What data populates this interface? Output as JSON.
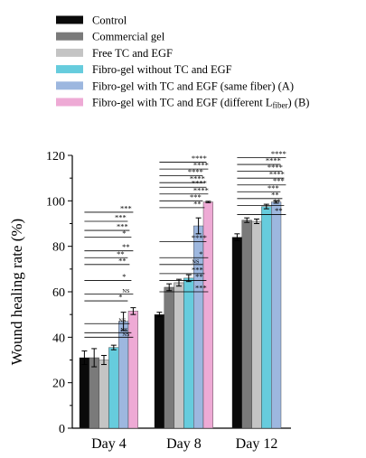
{
  "chart_data": {
    "type": "bar",
    "ylabel": "Wound healing rate (%)",
    "xlabel": "",
    "ylim": [
      0,
      120
    ],
    "yticks": [
      0,
      20,
      40,
      60,
      80,
      100,
      120
    ],
    "grid": false,
    "legend_position": "top",
    "categories": [
      "Day 4",
      "Day 8",
      "Day 12"
    ],
    "series": [
      {
        "name": "Control",
        "color": "#0a0a0a",
        "values": [
          31,
          50,
          84
        ],
        "errors": [
          3,
          1,
          1.5
        ]
      },
      {
        "name": "Commercial gel",
        "color": "#7a7a7a",
        "values": [
          31,
          62,
          91.5
        ],
        "errors": [
          4,
          1.5,
          1
        ]
      },
      {
        "name": "Free TC and EGF",
        "color": "#c4c4c4",
        "values": [
          30,
          64,
          91
        ],
        "errors": [
          2,
          1.5,
          1
        ]
      },
      {
        "name": "Fibro-gel without TC and EGF",
        "color": "#66ccdd",
        "values": [
          35.5,
          66,
          97.5
        ],
        "errors": [
          1,
          1.5,
          1
        ]
      },
      {
        "name": "Fibro-gel with TC and EGF (same fiber) (A)",
        "color": "#9db7df",
        "values": [
          47,
          89,
          99.5
        ],
        "errors": [
          4,
          3.5,
          0.5
        ]
      },
      {
        "name": "Fibro-gel with TC and EGF (different L",
        "name_sub": "fiber",
        "name_suffix": ") (B)",
        "color": "#eeaad5",
        "values": [
          51.5,
          99.5,
          null
        ],
        "errors": [
          1.5,
          0.3,
          null
        ]
      }
    ],
    "significance": [
      {
        "group": 0,
        "labels": [
          "NS",
          "NS",
          "NS",
          "*",
          "NS",
          "*",
          "**",
          "**",
          "**",
          "*",
          "***",
          "***",
          "***"
        ],
        "heights": [
          40,
          42,
          46,
          56,
          59,
          65,
          72,
          75,
          78,
          84,
          87,
          91,
          95
        ]
      },
      {
        "group": 1,
        "labels": [
          "***",
          "**",
          "***",
          "NS",
          "*",
          "****",
          "**",
          "***",
          "****",
          "****",
          "****",
          "****",
          "****",
          "****"
        ],
        "heights": [
          60,
          65,
          68,
          72,
          75,
          82,
          97,
          100,
          103,
          106,
          108,
          111,
          114,
          117
        ]
      },
      {
        "group": 2,
        "labels": [
          "**",
          "**",
          "**",
          "***",
          "***",
          "****",
          "****",
          "****",
          "****"
        ],
        "heights": [
          94,
          98,
          101,
          104,
          107,
          110,
          113,
          116,
          119
        ]
      }
    ]
  }
}
